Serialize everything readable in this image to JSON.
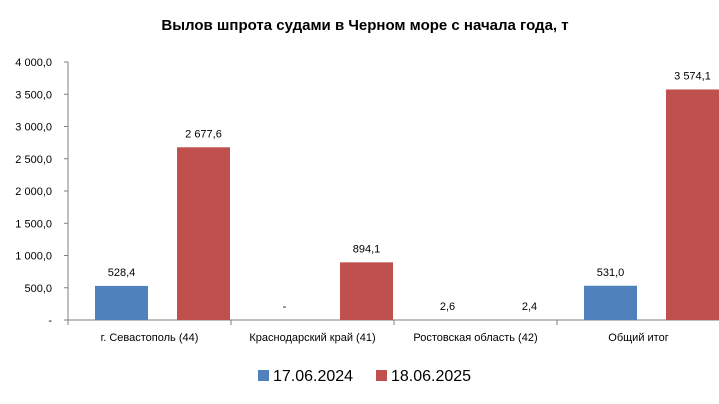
{
  "chart_data": {
    "type": "bar",
    "title": "Вылов шпрота судами в Черном море с начала  года, т",
    "xlabel": "",
    "ylabel": "",
    "ylim": [
      0,
      4000
    ],
    "yticks": [
      {
        "value": 0,
        "label": "-"
      },
      {
        "value": 500,
        "label": "500,0"
      },
      {
        "value": 1000,
        "label": "1 000,0"
      },
      {
        "value": 1500,
        "label": "1 500,0"
      },
      {
        "value": 2000,
        "label": "2 000,0"
      },
      {
        "value": 2500,
        "label": "2 500,0"
      },
      {
        "value": 3000,
        "label": "3 000,0"
      },
      {
        "value": 3500,
        "label": "3 500,0"
      },
      {
        "value": 4000,
        "label": "4 000,0"
      }
    ],
    "grid": false,
    "legend_position": "bottom",
    "categories": [
      "г. Севастополь (44)",
      "Краснодарский край (41)",
      "Ростовская область (42)",
      "Общий итог"
    ],
    "series": [
      {
        "name": "17.06.2024",
        "color": "#4F81BD",
        "values": [
          528.4,
          0,
          2.6,
          531.0
        ],
        "labels": [
          "528,4",
          "-",
          "2,6",
          "531,0"
        ]
      },
      {
        "name": "18.06.2025",
        "color": "#C0504D",
        "values": [
          2677.6,
          894.1,
          2.4,
          3574.1
        ],
        "labels": [
          "2 677,6",
          "894,1",
          "2,4",
          "3 574,1"
        ]
      }
    ]
  }
}
